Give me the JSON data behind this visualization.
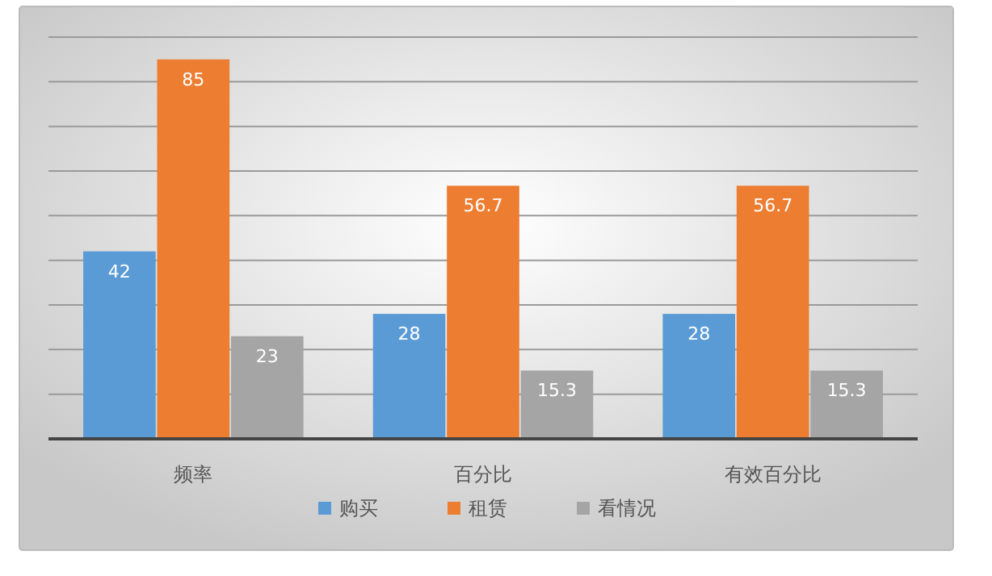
{
  "chart_data": {
    "type": "bar",
    "categories": [
      "频率",
      "百分比",
      "有效百分比"
    ],
    "series": [
      {
        "name": "购买",
        "color": "#5b9bd5",
        "values": [
          42,
          28,
          28
        ]
      },
      {
        "name": "租赁",
        "color": "#ed7d31",
        "values": [
          85,
          56.7,
          56.7
        ]
      },
      {
        "name": "看情况",
        "color": "#a5a5a5",
        "values": [
          23,
          15.3,
          15.3
        ]
      }
    ],
    "ylim": [
      0,
      90
    ],
    "yticks": [
      {
        "value": 0,
        "label": null
      },
      {
        "value": 10,
        "label": null
      },
      {
        "value": 20,
        "label": null
      },
      {
        "value": 30,
        "label": null
      },
      {
        "value": 40,
        "label": null
      },
      {
        "value": 50,
        "label": null
      },
      {
        "value": 60,
        "label": null
      },
      {
        "value": 70,
        "label": null
      },
      {
        "value": 80,
        "label": null
      },
      {
        "value": 90,
        "label": null
      }
    ],
    "tick_labels": "x",
    "grid": "y",
    "legend": "bottom",
    "data_labels": true
  }
}
